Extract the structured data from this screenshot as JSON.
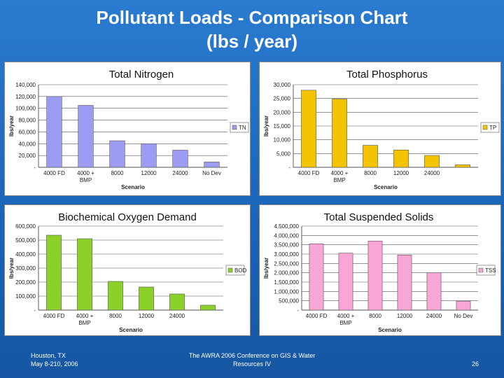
{
  "slide": {
    "title_line1": "Pollutant Loads - Comparison Chart",
    "title_line2": "(lbs / year)",
    "footer_left_line1": "Houston, TX",
    "footer_left_line2": "May 8-210, 2006",
    "footer_center_line1": "The AWRA 2006 Conference on GIS & Water",
    "footer_center_line2": "Resources IV",
    "page_number": "26"
  },
  "chart_data": [
    {
      "type": "bar",
      "title": "Total Nitrogen",
      "xlabel": "Scenario",
      "ylabel": "lbs/year",
      "categories": [
        "4000 FD",
        "4000 + BMP",
        "8000",
        "12000",
        "24000",
        "No Dev"
      ],
      "series": [
        {
          "name": "TN",
          "values": [
            120000,
            105000,
            45000,
            40000,
            29000,
            9000
          ]
        }
      ],
      "ylim": [
        0,
        140000
      ],
      "yticks": [
        0,
        20000,
        40000,
        60000,
        80000,
        100000,
        120000,
        140000
      ],
      "yticklabels": [
        "-",
        "20,000",
        "40,000",
        "60,000",
        "80,000",
        "100,000",
        "120,000",
        "140,000"
      ],
      "color": "#9b9bf2",
      "legend": "right"
    },
    {
      "type": "bar",
      "title": "Total Phosphorus",
      "xlabel": "Scenario",
      "ylabel": "lbs/year",
      "categories": [
        "4000 FD",
        "4000 + BMP",
        "8000",
        "12000",
        "24000",
        ""
      ],
      "series": [
        {
          "name": "TP",
          "values": [
            28000,
            24800,
            8000,
            6300,
            4300,
            900
          ]
        }
      ],
      "ylim": [
        0,
        30000
      ],
      "yticks": [
        0,
        5000,
        10000,
        15000,
        20000,
        25000,
        30000
      ],
      "yticklabels": [
        "-",
        "5,000",
        "10,000",
        "15,000",
        "20,000",
        "25,000",
        "30,000"
      ],
      "color": "#f5c400",
      "legend": "right"
    },
    {
      "type": "bar",
      "title": "Biochemical Oxygen Demand",
      "xlabel": "Scenario",
      "ylabel": "lbs/year",
      "categories": [
        "4000 FD",
        "4000 + BMP",
        "8000",
        "12000",
        "24000",
        ""
      ],
      "series": [
        {
          "name": "BOD",
          "values": [
            535000,
            510000,
            205000,
            165000,
            115000,
            35000
          ]
        }
      ],
      "ylim": [
        0,
        600000
      ],
      "yticks": [
        0,
        100000,
        200000,
        300000,
        400000,
        500000,
        600000
      ],
      "yticklabels": [
        "-",
        "100,000",
        "200,000",
        "300,000",
        "400,000",
        "500,000",
        "600,000"
      ],
      "color": "#8cd12a",
      "legend": "right"
    },
    {
      "type": "bar",
      "title": "Total Suspended Solids",
      "xlabel": "Scenario",
      "ylabel": "lbs/year",
      "categories": [
        "4000 FD",
        "4000 + BMP",
        "8000",
        "12000",
        "24000",
        "No Dev"
      ],
      "series": [
        {
          "name": "TSS",
          "values": [
            3550000,
            3050000,
            3700000,
            2950000,
            2000000,
            480000
          ]
        }
      ],
      "ylim": [
        0,
        4500000
      ],
      "yticks": [
        0,
        500000,
        1000000,
        1500000,
        2000000,
        2500000,
        3000000,
        3500000,
        4000000,
        4500000
      ],
      "yticklabels": [
        "-",
        "500,000",
        "1,000,000",
        "1,500,000",
        "2,000,000",
        "2,500,000",
        "3,000,000",
        "3,500,000",
        "4,000,000",
        "4,500,000"
      ],
      "color": "#f7a6d6",
      "legend": "right"
    }
  ]
}
